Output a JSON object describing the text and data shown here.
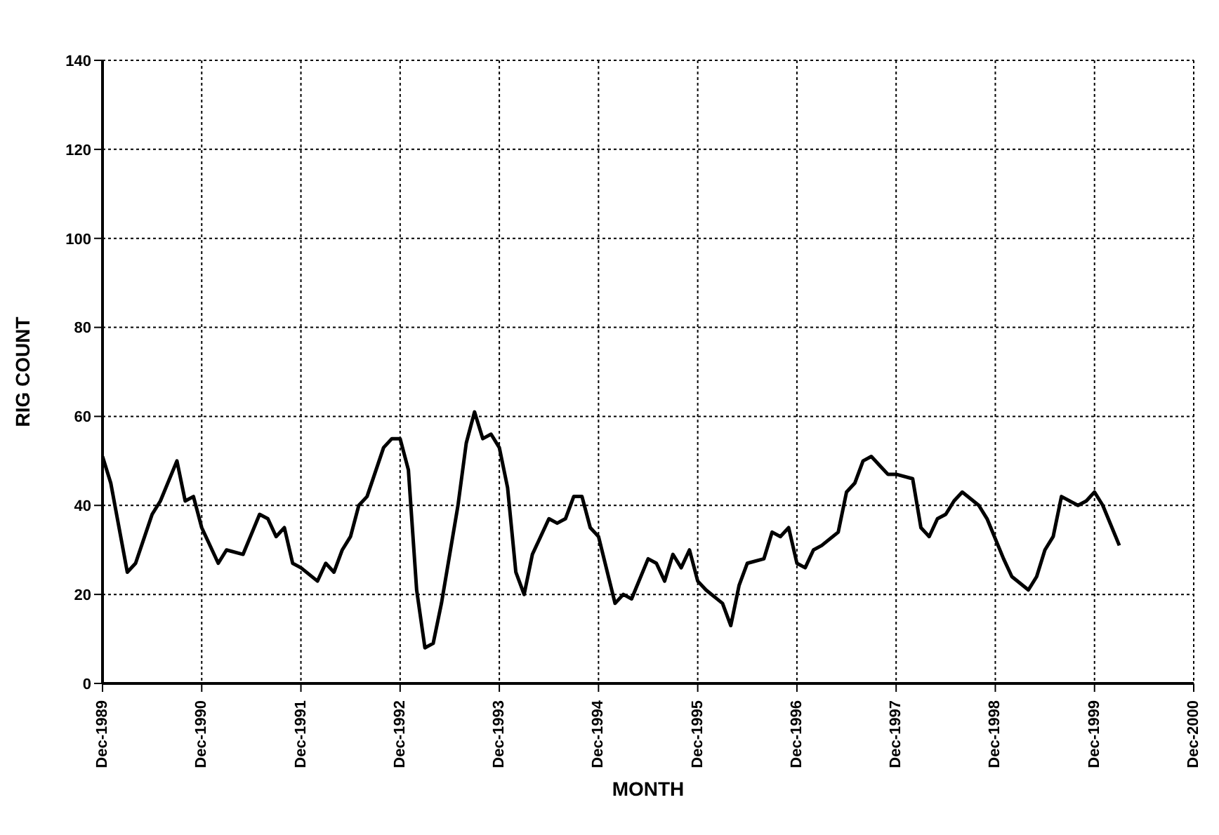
{
  "chart_data": {
    "type": "line",
    "xlabel": "MONTH",
    "ylabel": "RIG COUNT",
    "x": [
      "1989-12",
      "1990-01",
      "1990-03",
      "1990-04",
      "1990-06",
      "1990-07",
      "1990-09",
      "1990-10",
      "1990-11",
      "1990-12",
      "1991-02",
      "1991-03",
      "1991-05",
      "1991-07",
      "1991-08",
      "1991-09",
      "1991-10",
      "1991-11",
      "1991-12",
      "1992-02",
      "1992-03",
      "1992-04",
      "1992-05",
      "1992-06",
      "1992-07",
      "1992-08",
      "1992-10",
      "1992-11",
      "1992-12",
      "1993-01",
      "1993-02",
      "1993-03",
      "1993-04",
      "1993-05",
      "1993-07",
      "1993-08",
      "1993-09",
      "1993-10",
      "1993-11",
      "1993-12",
      "1994-01",
      "1994-02",
      "1994-03",
      "1994-04",
      "1994-06",
      "1994-07",
      "1994-08",
      "1994-09",
      "1994-10",
      "1994-11",
      "1994-12",
      "1995-02",
      "1995-03",
      "1995-04",
      "1995-06",
      "1995-07",
      "1995-08",
      "1995-09",
      "1995-10",
      "1995-11",
      "1995-12",
      "1996-01",
      "1996-03",
      "1996-04",
      "1996-05",
      "1996-06",
      "1996-08",
      "1996-09",
      "1996-10",
      "1996-11",
      "1996-12",
      "1997-01",
      "1997-02",
      "1997-03",
      "1997-05",
      "1997-06",
      "1997-07",
      "1997-08",
      "1997-09",
      "1997-10",
      "1997-11",
      "1997-12",
      "1998-02",
      "1998-03",
      "1998-04",
      "1998-05",
      "1998-06",
      "1998-07",
      "1998-08",
      "1998-10",
      "1998-11",
      "1999-01",
      "1999-02",
      "1999-04",
      "1999-05",
      "1999-06",
      "1999-07",
      "1999-08",
      "1999-10",
      "1999-11",
      "1999-12",
      "2000-01",
      "2000-03"
    ],
    "series": [
      {
        "color": "#000000",
        "values": [
          51,
          45,
          25,
          27,
          38,
          41,
          50,
          41,
          42,
          35,
          27,
          30,
          29,
          38,
          37,
          33,
          35,
          27,
          26,
          23,
          27,
          25,
          30,
          33,
          40,
          42,
          53,
          55,
          55,
          48,
          21,
          8,
          9,
          18,
          40,
          54,
          61,
          55,
          56,
          53,
          44,
          25,
          20,
          29,
          37,
          36,
          37,
          42,
          42,
          35,
          33,
          18,
          20,
          19,
          28,
          27,
          23,
          29,
          26,
          30,
          23,
          21,
          18,
          13,
          22,
          27,
          28,
          34,
          33,
          35,
          27,
          26,
          30,
          31,
          34,
          43,
          45,
          50,
          51,
          49,
          47,
          47,
          46,
          35,
          33,
          37,
          38,
          41,
          43,
          40,
          37,
          28,
          24,
          21,
          24,
          30,
          33,
          42,
          40,
          41,
          43,
          40,
          31
        ]
      }
    ],
    "xlim": [
      "1989-12",
      "2000-12"
    ],
    "xticks": [
      {
        "value": "1989-12",
        "label": "Dec-1989"
      },
      {
        "value": "1990-12",
        "label": "Dec-1990"
      },
      {
        "value": "1991-12",
        "label": "Dec-1991"
      },
      {
        "value": "1992-12",
        "label": "Dec-1992"
      },
      {
        "value": "1993-12",
        "label": "Dec-1993"
      },
      {
        "value": "1994-12",
        "label": "Dec-1994"
      },
      {
        "value": "1995-12",
        "label": "Dec-1995"
      },
      {
        "value": "1996-12",
        "label": "Dec-1996"
      },
      {
        "value": "1997-12",
        "label": "Dec-1997"
      },
      {
        "value": "1998-12",
        "label": "Dec-1998"
      },
      {
        "value": "1999-12",
        "label": "Dec-1999"
      },
      {
        "value": "2000-12",
        "label": "Dec-2000"
      }
    ],
    "ylim": [
      0,
      140
    ],
    "yticks": [
      0,
      20,
      40,
      60,
      80,
      100,
      120,
      140
    ],
    "grid": true,
    "legend": false,
    "marker": "none",
    "line_style": "solid"
  }
}
